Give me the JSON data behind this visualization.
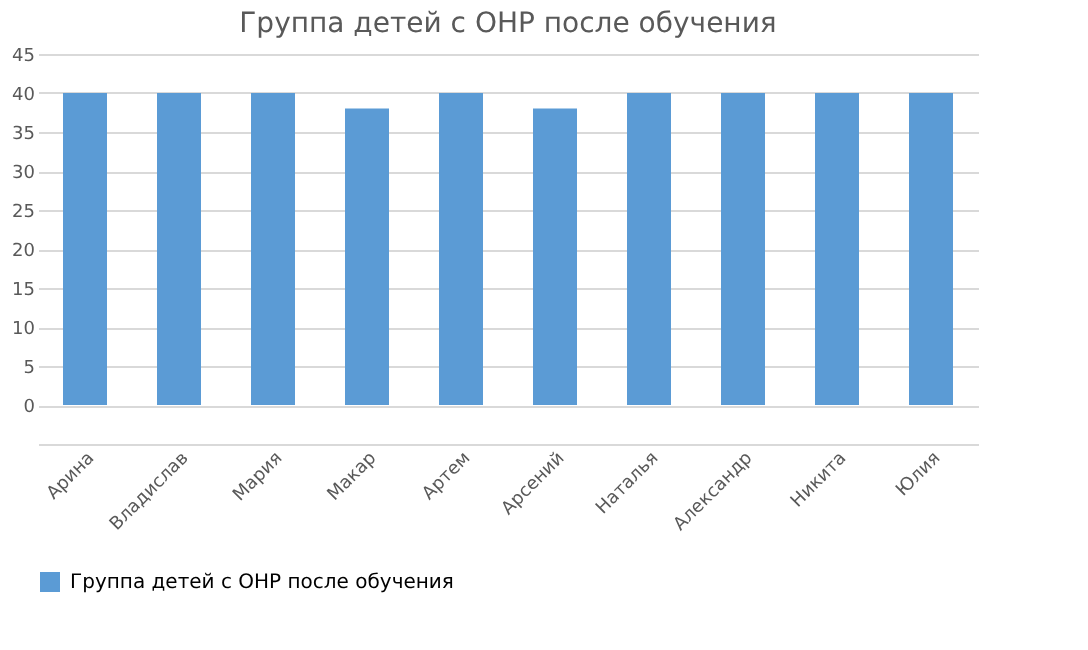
{
  "chart_data": {
    "type": "bar",
    "title": "Группа детей с ОНР после обучения",
    "categories": [
      "Арина",
      "Владислав",
      "Мария",
      "Макар",
      "Артем",
      "Арсений",
      "Наталья",
      "Александр",
      "Никита",
      "Юлия"
    ],
    "series": [
      {
        "name": "Группа детей с ОНР после обучения",
        "color": "#5b9bd5",
        "values": [
          40,
          40,
          40,
          38,
          40,
          38,
          40,
          40,
          40,
          40
        ]
      }
    ],
    "ylim": [
      -5,
      45
    ],
    "yticks": [
      {
        "value": -5,
        "label": null
      },
      0,
      5,
      10,
      15,
      20,
      25,
      30,
      35,
      40,
      45
    ],
    "grid": "y",
    "legend": "bottom"
  }
}
